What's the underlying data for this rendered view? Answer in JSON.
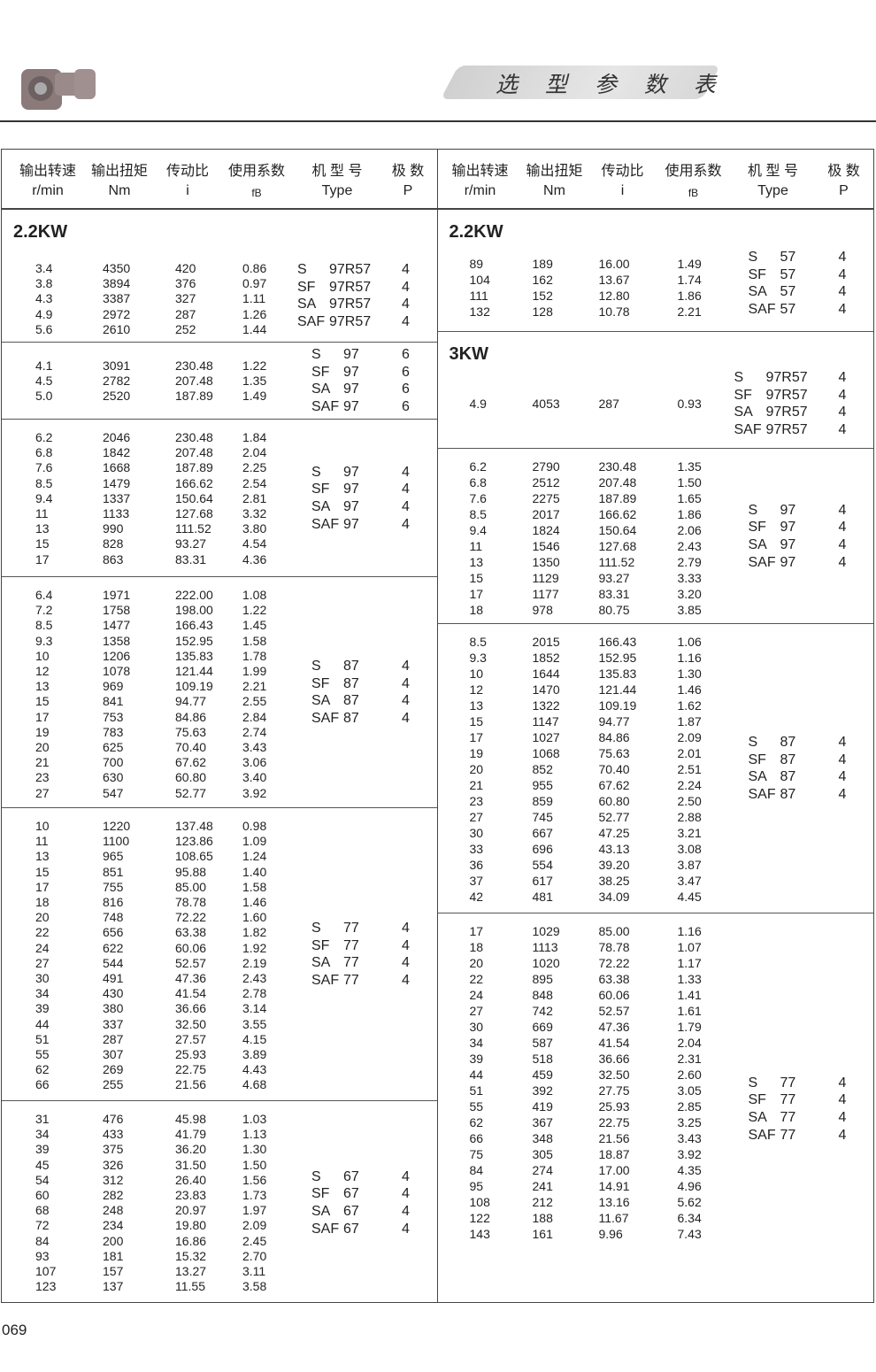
{
  "page_title": "选 型 参 数 表",
  "page_number": "069",
  "header_columns": [
    {
      "zh": "输出转速",
      "en": "r/min"
    },
    {
      "zh": "输出扭矩",
      "en": "Nm"
    },
    {
      "zh": "传动比",
      "en": "i"
    },
    {
      "zh": "使用系数",
      "en": "fB"
    },
    {
      "zh": "机 型 号",
      "en": "Type"
    },
    {
      "zh": "极  数",
      "en": "P"
    }
  ],
  "left": [
    {
      "title": "2.2KW",
      "rows": [
        [
          "3.4",
          "4350",
          "420",
          "0.86"
        ],
        [
          "3.8",
          "3894",
          "376",
          "0.97"
        ],
        [
          "4.3",
          "3387",
          "327",
          "1.11"
        ],
        [
          "4.9",
          "2972",
          "287",
          "1.26"
        ],
        [
          "5.6",
          "2610",
          "252",
          "1.44"
        ]
      ],
      "types": [
        [
          "S",
          "97R57",
          "4"
        ],
        [
          "SF",
          "97R57",
          "4"
        ],
        [
          "SA",
          "97R57",
          "4"
        ],
        [
          "SAF",
          "97R57",
          "4"
        ]
      ]
    },
    {
      "rows": [
        [
          "4.1",
          "3091",
          "230.48",
          "1.22"
        ],
        [
          "4.5",
          "2782",
          "207.48",
          "1.35"
        ],
        [
          "5.0",
          "2520",
          "187.89",
          "1.49"
        ]
      ],
      "types": [
        [
          "S",
          "97",
          "6"
        ],
        [
          "SF",
          "97",
          "6"
        ],
        [
          "SA",
          "97",
          "6"
        ],
        [
          "SAF",
          "97",
          "6"
        ]
      ]
    },
    {
      "rows": [
        [
          "6.2",
          "2046",
          "230.48",
          "1.84"
        ],
        [
          "6.8",
          "1842",
          "207.48",
          "2.04"
        ],
        [
          "7.6",
          "1668",
          "187.89",
          "2.25"
        ],
        [
          "8.5",
          "1479",
          "166.62",
          "2.54"
        ],
        [
          "9.4",
          "1337",
          "150.64",
          "2.81"
        ],
        [
          "11",
          "1133",
          "127.68",
          "3.32"
        ],
        [
          "13",
          "990",
          "111.52",
          "3.80"
        ],
        [
          "15",
          "828",
          "93.27",
          "4.54"
        ],
        [
          "17",
          "863",
          "83.31",
          "4.36"
        ]
      ],
      "types": [
        [
          "S",
          "97",
          "4"
        ],
        [
          "SF",
          "97",
          "4"
        ],
        [
          "SA",
          "97",
          "4"
        ],
        [
          "SAF",
          "97",
          "4"
        ]
      ]
    },
    {
      "rows": [
        [
          "6.4",
          "1971",
          "222.00",
          "1.08"
        ],
        [
          "7.2",
          "1758",
          "198.00",
          "1.22"
        ],
        [
          "8.5",
          "1477",
          "166.43",
          "1.45"
        ],
        [
          "9.3",
          "1358",
          "152.95",
          "1.58"
        ],
        [
          "10",
          "1206",
          "135.83",
          "1.78"
        ],
        [
          "12",
          "1078",
          "121.44",
          "1.99"
        ],
        [
          "13",
          "969",
          "109.19",
          "2.21"
        ],
        [
          "15",
          "841",
          "94.77",
          "2.55"
        ],
        [
          "17",
          "753",
          "84.86",
          "2.84"
        ],
        [
          "19",
          "783",
          "75.63",
          "2.74"
        ],
        [
          "20",
          "625",
          "70.40",
          "3.43"
        ],
        [
          "21",
          "700",
          "67.62",
          "3.06"
        ],
        [
          "23",
          "630",
          "60.80",
          "3.40"
        ],
        [
          "27",
          "547",
          "52.77",
          "3.92"
        ]
      ],
      "types": [
        [
          "S",
          "87",
          "4"
        ],
        [
          "SF",
          "87",
          "4"
        ],
        [
          "SA",
          "87",
          "4"
        ],
        [
          "SAF",
          "87",
          "4"
        ]
      ]
    },
    {
      "rows": [
        [
          "10",
          "1220",
          "137.48",
          "0.98"
        ],
        [
          "11",
          "1100",
          "123.86",
          "1.09"
        ],
        [
          "13",
          "965",
          "108.65",
          "1.24"
        ],
        [
          "15",
          "851",
          "95.88",
          "1.40"
        ],
        [
          "17",
          "755",
          "85.00",
          "1.58"
        ],
        [
          "18",
          "816",
          "78.78",
          "1.46"
        ],
        [
          "20",
          "748",
          "72.22",
          "1.60"
        ],
        [
          "22",
          "656",
          "63.38",
          "1.82"
        ],
        [
          "24",
          "622",
          "60.06",
          "1.92"
        ],
        [
          "27",
          "544",
          "52.57",
          "2.19"
        ],
        [
          "30",
          "491",
          "47.36",
          "2.43"
        ],
        [
          "34",
          "430",
          "41.54",
          "2.78"
        ],
        [
          "39",
          "380",
          "36.66",
          "3.14"
        ],
        [
          "44",
          "337",
          "32.50",
          "3.55"
        ],
        [
          "51",
          "287",
          "27.57",
          "4.15"
        ],
        [
          "55",
          "307",
          "25.93",
          "3.89"
        ],
        [
          "62",
          "269",
          "22.75",
          "4.43"
        ],
        [
          "66",
          "255",
          "21.56",
          "4.68"
        ]
      ],
      "types": [
        [
          "S",
          "77",
          "4"
        ],
        [
          "SF",
          "77",
          "4"
        ],
        [
          "SA",
          "77",
          "4"
        ],
        [
          "SAF",
          "77",
          "4"
        ]
      ]
    },
    {
      "rows": [
        [
          "31",
          "476",
          "45.98",
          "1.03"
        ],
        [
          "34",
          "433",
          "41.79",
          "1.13"
        ],
        [
          "39",
          "375",
          "36.20",
          "1.30"
        ],
        [
          "45",
          "326",
          "31.50",
          "1.50"
        ],
        [
          "54",
          "312",
          "26.40",
          "1.56"
        ],
        [
          "60",
          "282",
          "23.83",
          "1.73"
        ],
        [
          "68",
          "248",
          "20.97",
          "1.97"
        ],
        [
          "72",
          "234",
          "19.80",
          "2.09"
        ],
        [
          "84",
          "200",
          "16.86",
          "2.45"
        ],
        [
          "93",
          "181",
          "15.32",
          "2.70"
        ],
        [
          "107",
          "157",
          "13.27",
          "3.11"
        ],
        [
          "123",
          "137",
          "11.55",
          "3.58"
        ]
      ],
      "types": [
        [
          "S",
          "67",
          "4"
        ],
        [
          "SF",
          "67",
          "4"
        ],
        [
          "SA",
          "67",
          "4"
        ],
        [
          "SAF",
          "67",
          "4"
        ]
      ]
    }
  ],
  "right": [
    {
      "title": "2.2KW",
      "rows": [
        [
          "89",
          "189",
          "16.00",
          "1.49"
        ],
        [
          "104",
          "162",
          "13.67",
          "1.74"
        ],
        [
          "111",
          "152",
          "12.80",
          "1.86"
        ],
        [
          "132",
          "128",
          "10.78",
          "2.21"
        ]
      ],
      "types": [
        [
          "S",
          "57",
          "4"
        ],
        [
          "SF",
          "57",
          "4"
        ],
        [
          "SA",
          "57",
          "4"
        ],
        [
          "SAF",
          "57",
          "4"
        ]
      ]
    },
    {
      "title": "3KW",
      "rows": [
        [
          "4.9",
          "4053",
          "287",
          "0.93"
        ]
      ],
      "types": [
        [
          "S",
          "97R57",
          "4"
        ],
        [
          "SF",
          "97R57",
          "4"
        ],
        [
          "SA",
          "97R57",
          "4"
        ],
        [
          "SAF",
          "97R57",
          "4"
        ]
      ]
    },
    {
      "rows": [
        [
          "6.2",
          "2790",
          "230.48",
          "1.35"
        ],
        [
          "6.8",
          "2512",
          "207.48",
          "1.50"
        ],
        [
          "7.6",
          "2275",
          "187.89",
          "1.65"
        ],
        [
          "8.5",
          "2017",
          "166.62",
          "1.86"
        ],
        [
          "9.4",
          "1824",
          "150.64",
          "2.06"
        ],
        [
          "11",
          "1546",
          "127.68",
          "2.43"
        ],
        [
          "13",
          "1350",
          "111.52",
          "2.79"
        ],
        [
          "15",
          "1129",
          "93.27",
          "3.33"
        ],
        [
          "17",
          "1177",
          "83.31",
          "3.20"
        ],
        [
          "18",
          "978",
          "80.75",
          "3.85"
        ]
      ],
      "types": [
        [
          "S",
          "97",
          "4"
        ],
        [
          "SF",
          "97",
          "4"
        ],
        [
          "SA",
          "97",
          "4"
        ],
        [
          "SAF",
          "97",
          "4"
        ]
      ]
    },
    {
      "rows": [
        [
          "8.5",
          "2015",
          "166.43",
          "1.06"
        ],
        [
          "9.3",
          "1852",
          "152.95",
          "1.16"
        ],
        [
          "10",
          "1644",
          "135.83",
          "1.30"
        ],
        [
          "12",
          "1470",
          "121.44",
          "1.46"
        ],
        [
          "13",
          "1322",
          "109.19",
          "1.62"
        ],
        [
          "15",
          "1147",
          "94.77",
          "1.87"
        ],
        [
          "17",
          "1027",
          "84.86",
          "2.09"
        ],
        [
          "19",
          "1068",
          "75.63",
          "2.01"
        ],
        [
          "20",
          "852",
          "70.40",
          "2.51"
        ],
        [
          "21",
          "955",
          "67.62",
          "2.24"
        ],
        [
          "23",
          "859",
          "60.80",
          "2.50"
        ],
        [
          "27",
          "745",
          "52.77",
          "2.88"
        ],
        [
          "30",
          "667",
          "47.25",
          "3.21"
        ],
        [
          "33",
          "696",
          "43.13",
          "3.08"
        ],
        [
          "36",
          "554",
          "39.20",
          "3.87"
        ],
        [
          "37",
          "617",
          "38.25",
          "3.47"
        ],
        [
          "42",
          "481",
          "34.09",
          "4.45"
        ]
      ],
      "types": [
        [
          "S",
          "87",
          "4"
        ],
        [
          "SF",
          "87",
          "4"
        ],
        [
          "SA",
          "87",
          "4"
        ],
        [
          "SAF",
          "87",
          "4"
        ]
      ]
    },
    {
      "rows": [
        [
          "17",
          "1029",
          "85.00",
          "1.16"
        ],
        [
          "18",
          "1113",
          "78.78",
          "1.07"
        ],
        [
          "20",
          "1020",
          "72.22",
          "1.17"
        ],
        [
          "22",
          "895",
          "63.38",
          "1.33"
        ],
        [
          "24",
          "848",
          "60.06",
          "1.41"
        ],
        [
          "27",
          "742",
          "52.57",
          "1.61"
        ],
        [
          "30",
          "669",
          "47.36",
          "1.79"
        ],
        [
          "34",
          "587",
          "41.54",
          "2.04"
        ],
        [
          "39",
          "518",
          "36.66",
          "2.31"
        ],
        [
          "44",
          "459",
          "32.50",
          "2.60"
        ],
        [
          "51",
          "392",
          "27.75",
          "3.05"
        ],
        [
          "55",
          "419",
          "25.93",
          "2.85"
        ],
        [
          "62",
          "367",
          "22.75",
          "3.25"
        ],
        [
          "66",
          "348",
          "21.56",
          "3.43"
        ],
        [
          "75",
          "305",
          "18.87",
          "3.92"
        ],
        [
          "84",
          "274",
          "17.00",
          "4.35"
        ],
        [
          "95",
          "241",
          "14.91",
          "4.96"
        ],
        [
          "108",
          "212",
          "13.16",
          "5.62"
        ],
        [
          "122",
          "188",
          "11.67",
          "6.34"
        ],
        [
          "143",
          "161",
          "9.96",
          "7.43"
        ]
      ],
      "types": [
        [
          "S",
          "77",
          "4"
        ],
        [
          "SF",
          "77",
          "4"
        ],
        [
          "SA",
          "77",
          "4"
        ],
        [
          "SAF",
          "77",
          "4"
        ]
      ]
    }
  ]
}
